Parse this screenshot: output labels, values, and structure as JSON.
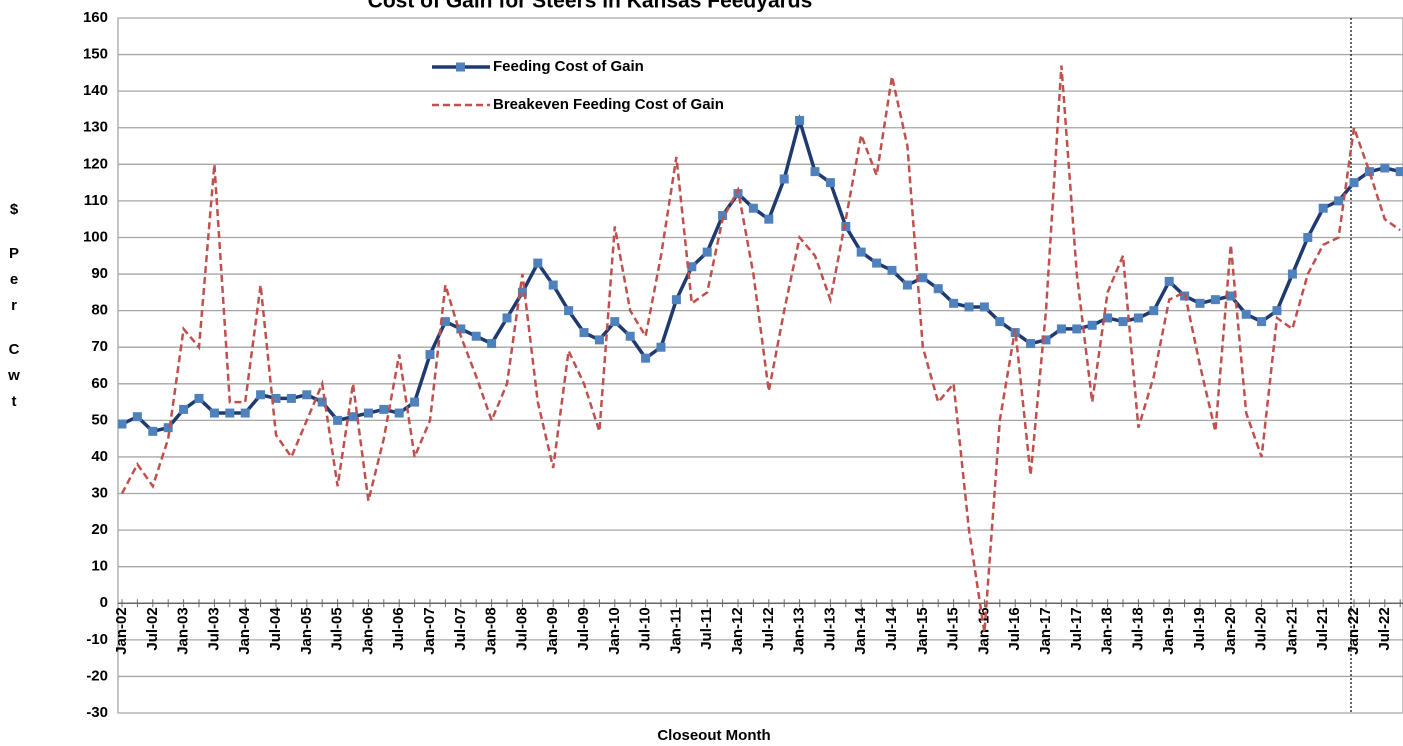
{
  "chart_data": {
    "type": "line",
    "title": "Cost of Gain for Steers in Kansas Feedyards",
    "x_label": "Closeout Month",
    "y_label": "$ Per Cwt",
    "categories": [
      "Jan-02",
      null,
      "Jul-02",
      null,
      "Jan-03",
      null,
      "Jul-03",
      null,
      "Jan-04",
      null,
      "Jul-04",
      null,
      "Jan-05",
      null,
      "Jul-05",
      null,
      "Jan-06",
      null,
      "Jul-06",
      null,
      "Jan-07",
      null,
      "Jul-07",
      null,
      "Jan-08",
      null,
      "Jul-08",
      null,
      "Jan-09",
      null,
      "Jul-09",
      null,
      "Jan-10",
      null,
      "Jul-10",
      null,
      "Jan-11",
      null,
      "Jul-11",
      null,
      "Jan-12",
      null,
      "Jul-12",
      null,
      "Jan-13",
      null,
      "Jul-13",
      null,
      "Jan-14",
      null,
      "Jul-14",
      null,
      "Jan-15",
      null,
      "Jul-15",
      null,
      "Jan-16",
      null,
      "Jul-16",
      null,
      "Jan-17",
      null,
      "Jul-17",
      null,
      "Jan-18",
      null,
      "Jul-18",
      null,
      "Jan-19",
      null,
      "Jul-19",
      null,
      "Jan-20",
      null,
      "Jul-20",
      null,
      "Jan-21",
      null,
      "Jul-21",
      null,
      "Jan-22",
      null,
      "Jul-22",
      null
    ],
    "series": [
      {
        "name": "Feeding Cost of Gain",
        "color": "#1f3a6e",
        "marker_color": "#4f81bd",
        "dashed": false,
        "values": [
          49,
          51,
          47,
          48,
          53,
          56,
          52,
          52,
          52,
          57,
          56,
          56,
          57,
          55,
          50,
          51,
          52,
          53,
          52,
          55,
          68,
          77,
          75,
          73,
          71,
          78,
          85,
          93,
          87,
          80,
          74,
          72,
          77,
          73,
          67,
          70,
          83,
          92,
          96,
          106,
          112,
          108,
          105,
          116,
          132,
          118,
          115,
          103,
          96,
          93,
          91,
          87,
          89,
          86,
          82,
          81,
          81,
          77,
          74,
          71,
          72,
          75,
          75,
          76,
          78,
          77,
          78,
          80,
          88,
          84,
          82,
          83,
          84,
          79,
          77,
          80,
          90,
          100,
          108,
          110,
          115,
          118,
          119,
          118
        ]
      },
      {
        "name": "Breakeven Feeding Cost of Gain",
        "color": "#c0504d",
        "dashed": true,
        "values": [
          30,
          38,
          32,
          45,
          75,
          70,
          120,
          55,
          55,
          87,
          46,
          40,
          50,
          60,
          32,
          60,
          28,
          45,
          68,
          40,
          50,
          87,
          73,
          62,
          50,
          60,
          90,
          55,
          37,
          69,
          60,
          47,
          103,
          80,
          73,
          95,
          122,
          82,
          85,
          105,
          113,
          90,
          58,
          80,
          100,
          95,
          83,
          105,
          128,
          117,
          144,
          125,
          70,
          55,
          60,
          20,
          -8,
          50,
          75,
          35,
          80,
          147,
          90,
          55,
          85,
          95,
          48,
          62,
          83,
          85,
          65,
          47,
          98,
          52,
          40,
          78,
          75,
          90,
          98,
          100,
          130,
          118,
          105,
          102
        ]
      }
    ],
    "ylim": [
      -30,
      160
    ],
    "yticks": [
      -30,
      -20,
      -10,
      0,
      10,
      20,
      30,
      40,
      50,
      60,
      70,
      80,
      90,
      100,
      110,
      120,
      130,
      140,
      150,
      160
    ],
    "grid": true,
    "reference_line": "Jan-22"
  }
}
